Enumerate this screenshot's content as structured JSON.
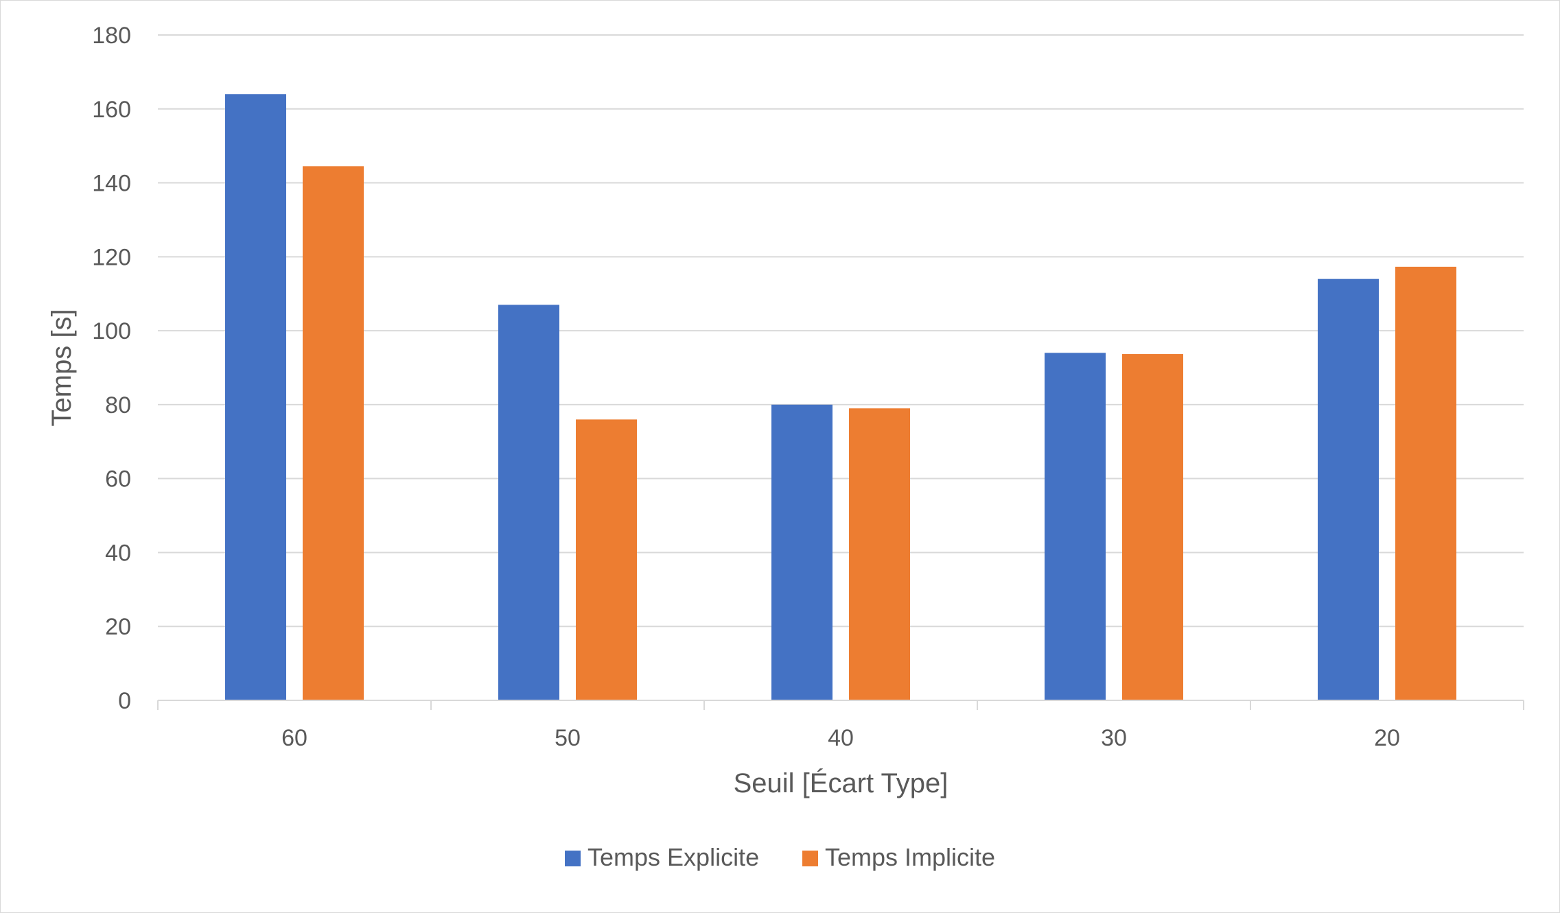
{
  "chart_data": {
    "type": "bar",
    "title": "",
    "xlabel": "Seuil [Écart Type]",
    "ylabel": "Temps [s]",
    "categories": [
      "60",
      "50",
      "40",
      "30",
      "20"
    ],
    "series": [
      {
        "name": "Temps Explicite",
        "color": "#4472C4",
        "values": [
          164,
          107,
          80,
          94,
          114
        ]
      },
      {
        "name": "Temps Implicite",
        "color": "#ED7D31",
        "values": [
          144.5,
          76,
          79,
          93.7,
          117.3
        ]
      }
    ],
    "ylim": [
      0,
      180
    ],
    "yticks": [
      0,
      20,
      40,
      60,
      80,
      100,
      120,
      140,
      160,
      180
    ],
    "grid": true,
    "legend_position": "bottom"
  }
}
